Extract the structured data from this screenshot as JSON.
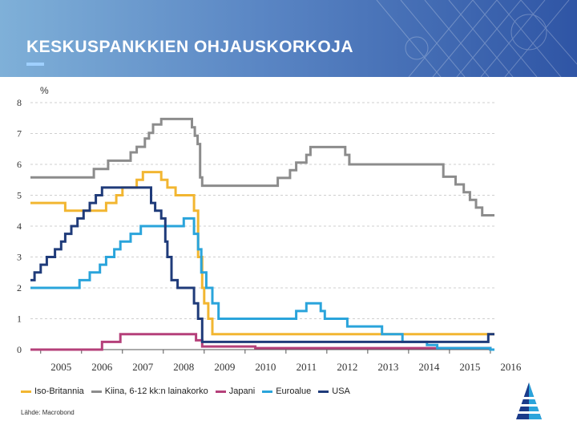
{
  "header": {
    "title": "KESKUSPANKKIEN OHJAUSKORKOJA"
  },
  "source": "Lähde: Macrobond",
  "colors": {
    "header_start": "#7fb0d8",
    "header_end": "#2f55a5"
  },
  "chart_data": {
    "type": "line",
    "ylabel": "%",
    "ylim": [
      0,
      8
    ],
    "xlim": [
      2004.75,
      2016.1
    ],
    "yticks": [
      "0",
      "1",
      "2",
      "3",
      "4",
      "5",
      "6",
      "7",
      "8"
    ],
    "xticks": [
      "2005",
      "2006",
      "2007",
      "2008",
      "2009",
      "2010",
      "2011",
      "2012",
      "2013",
      "2014",
      "2015",
      "2016"
    ],
    "grid": "horizontal dashed",
    "legend_position": "bottom",
    "series": [
      {
        "name": "Iso-Britannia",
        "color": "#f2b631",
        "points": [
          [
            2004.75,
            4.75
          ],
          [
            2005.6,
            4.75
          ],
          [
            2005.6,
            4.5
          ],
          [
            2006.6,
            4.5
          ],
          [
            2006.6,
            4.75
          ],
          [
            2006.85,
            4.75
          ],
          [
            2006.85,
            5.0
          ],
          [
            2007.0,
            5.0
          ],
          [
            2007.0,
            5.25
          ],
          [
            2007.35,
            5.25
          ],
          [
            2007.35,
            5.5
          ],
          [
            2007.5,
            5.5
          ],
          [
            2007.5,
            5.75
          ],
          [
            2007.95,
            5.75
          ],
          [
            2007.95,
            5.5
          ],
          [
            2008.1,
            5.5
          ],
          [
            2008.1,
            5.25
          ],
          [
            2008.3,
            5.25
          ],
          [
            2008.3,
            5.0
          ],
          [
            2008.75,
            5.0
          ],
          [
            2008.75,
            4.5
          ],
          [
            2008.85,
            4.5
          ],
          [
            2008.85,
            3.0
          ],
          [
            2008.95,
            3.0
          ],
          [
            2008.95,
            2.0
          ],
          [
            2009.0,
            2.0
          ],
          [
            2009.0,
            1.5
          ],
          [
            2009.1,
            1.5
          ],
          [
            2009.1,
            1.0
          ],
          [
            2009.2,
            1.0
          ],
          [
            2009.2,
            0.5
          ],
          [
            2016.1,
            0.5
          ]
        ]
      },
      {
        "name": "Kiina, 6-12 kk:n lainakorko",
        "color": "#8c8c8c",
        "points": [
          [
            2004.75,
            5.58
          ],
          [
            2006.3,
            5.58
          ],
          [
            2006.3,
            5.85
          ],
          [
            2006.65,
            5.85
          ],
          [
            2006.65,
            6.12
          ],
          [
            2007.2,
            6.12
          ],
          [
            2007.2,
            6.39
          ],
          [
            2007.35,
            6.39
          ],
          [
            2007.35,
            6.57
          ],
          [
            2007.55,
            6.57
          ],
          [
            2007.55,
            6.84
          ],
          [
            2007.65,
            6.84
          ],
          [
            2007.65,
            7.02
          ],
          [
            2007.75,
            7.02
          ],
          [
            2007.75,
            7.29
          ],
          [
            2007.95,
            7.29
          ],
          [
            2007.95,
            7.47
          ],
          [
            2008.7,
            7.47
          ],
          [
            2008.7,
            7.2
          ],
          [
            2008.77,
            7.2
          ],
          [
            2008.77,
            6.93
          ],
          [
            2008.84,
            6.93
          ],
          [
            2008.84,
            6.66
          ],
          [
            2008.9,
            6.66
          ],
          [
            2008.9,
            5.58
          ],
          [
            2008.95,
            5.58
          ],
          [
            2008.95,
            5.31
          ],
          [
            2010.8,
            5.31
          ],
          [
            2010.8,
            5.56
          ],
          [
            2011.1,
            5.56
          ],
          [
            2011.1,
            5.81
          ],
          [
            2011.25,
            5.81
          ],
          [
            2011.25,
            6.06
          ],
          [
            2011.5,
            6.06
          ],
          [
            2011.5,
            6.31
          ],
          [
            2011.6,
            6.31
          ],
          [
            2011.6,
            6.56
          ],
          [
            2012.45,
            6.56
          ],
          [
            2012.45,
            6.31
          ],
          [
            2012.55,
            6.31
          ],
          [
            2012.55,
            6.0
          ],
          [
            2014.85,
            6.0
          ],
          [
            2014.85,
            5.6
          ],
          [
            2015.15,
            5.6
          ],
          [
            2015.15,
            5.35
          ],
          [
            2015.35,
            5.35
          ],
          [
            2015.35,
            5.1
          ],
          [
            2015.5,
            5.1
          ],
          [
            2015.5,
            4.85
          ],
          [
            2015.65,
            4.85
          ],
          [
            2015.65,
            4.6
          ],
          [
            2015.8,
            4.6
          ],
          [
            2015.8,
            4.35
          ],
          [
            2016.1,
            4.35
          ]
        ]
      },
      {
        "name": "Japani",
        "color": "#b5407a",
        "points": [
          [
            2004.75,
            0.0
          ],
          [
            2006.5,
            0.0
          ],
          [
            2006.5,
            0.25
          ],
          [
            2006.95,
            0.25
          ],
          [
            2006.95,
            0.5
          ],
          [
            2008.8,
            0.5
          ],
          [
            2008.8,
            0.3
          ],
          [
            2008.95,
            0.3
          ],
          [
            2008.95,
            0.1
          ],
          [
            2010.25,
            0.1
          ],
          [
            2010.25,
            0.05
          ],
          [
            2016.0,
            0.05
          ],
          [
            2016.0,
            0.0
          ],
          [
            2016.1,
            0.0
          ]
        ]
      },
      {
        "name": "Euroalue",
        "color": "#2aa4db",
        "points": [
          [
            2004.75,
            2.0
          ],
          [
            2005.95,
            2.0
          ],
          [
            2005.95,
            2.25
          ],
          [
            2006.2,
            2.25
          ],
          [
            2006.2,
            2.5
          ],
          [
            2006.45,
            2.5
          ],
          [
            2006.45,
            2.75
          ],
          [
            2006.6,
            2.75
          ],
          [
            2006.6,
            3.0
          ],
          [
            2006.8,
            3.0
          ],
          [
            2006.8,
            3.25
          ],
          [
            2006.95,
            3.25
          ],
          [
            2006.95,
            3.5
          ],
          [
            2007.2,
            3.5
          ],
          [
            2007.2,
            3.75
          ],
          [
            2007.45,
            3.75
          ],
          [
            2007.45,
            4.0
          ],
          [
            2008.5,
            4.0
          ],
          [
            2008.5,
            4.25
          ],
          [
            2008.75,
            4.25
          ],
          [
            2008.75,
            3.75
          ],
          [
            2008.85,
            3.75
          ],
          [
            2008.85,
            3.25
          ],
          [
            2008.93,
            3.25
          ],
          [
            2008.93,
            2.5
          ],
          [
            2009.05,
            2.5
          ],
          [
            2009.05,
            2.0
          ],
          [
            2009.2,
            2.0
          ],
          [
            2009.2,
            1.5
          ],
          [
            2009.35,
            1.5
          ],
          [
            2009.35,
            1.0
          ],
          [
            2011.25,
            1.0
          ],
          [
            2011.25,
            1.25
          ],
          [
            2011.5,
            1.25
          ],
          [
            2011.5,
            1.5
          ],
          [
            2011.85,
            1.5
          ],
          [
            2011.85,
            1.25
          ],
          [
            2011.95,
            1.25
          ],
          [
            2011.95,
            1.0
          ],
          [
            2012.5,
            1.0
          ],
          [
            2012.5,
            0.75
          ],
          [
            2013.35,
            0.75
          ],
          [
            2013.35,
            0.5
          ],
          [
            2013.85,
            0.5
          ],
          [
            2013.85,
            0.25
          ],
          [
            2014.45,
            0.25
          ],
          [
            2014.45,
            0.15
          ],
          [
            2014.7,
            0.15
          ],
          [
            2014.7,
            0.05
          ],
          [
            2016.0,
            0.05
          ],
          [
            2016.0,
            0.0
          ],
          [
            2016.1,
            0.0
          ]
        ]
      },
      {
        "name": "USA",
        "color": "#1f3b7a",
        "points": [
          [
            2004.75,
            2.25
          ],
          [
            2004.85,
            2.25
          ],
          [
            2004.85,
            2.5
          ],
          [
            2005.0,
            2.5
          ],
          [
            2005.0,
            2.75
          ],
          [
            2005.15,
            2.75
          ],
          [
            2005.15,
            3.0
          ],
          [
            2005.35,
            3.0
          ],
          [
            2005.35,
            3.25
          ],
          [
            2005.5,
            3.25
          ],
          [
            2005.5,
            3.5
          ],
          [
            2005.6,
            3.5
          ],
          [
            2005.6,
            3.75
          ],
          [
            2005.75,
            3.75
          ],
          [
            2005.75,
            4.0
          ],
          [
            2005.9,
            4.0
          ],
          [
            2005.9,
            4.25
          ],
          [
            2006.05,
            4.25
          ],
          [
            2006.05,
            4.5
          ],
          [
            2006.2,
            4.5
          ],
          [
            2006.2,
            4.75
          ],
          [
            2006.35,
            4.75
          ],
          [
            2006.35,
            5.0
          ],
          [
            2006.5,
            5.0
          ],
          [
            2006.5,
            5.25
          ],
          [
            2007.7,
            5.25
          ],
          [
            2007.7,
            4.75
          ],
          [
            2007.8,
            4.75
          ],
          [
            2007.8,
            4.5
          ],
          [
            2007.95,
            4.5
          ],
          [
            2007.95,
            4.25
          ],
          [
            2008.05,
            4.25
          ],
          [
            2008.05,
            3.5
          ],
          [
            2008.1,
            3.5
          ],
          [
            2008.1,
            3.0
          ],
          [
            2008.2,
            3.0
          ],
          [
            2008.2,
            2.25
          ],
          [
            2008.35,
            2.25
          ],
          [
            2008.35,
            2.0
          ],
          [
            2008.75,
            2.0
          ],
          [
            2008.75,
            1.5
          ],
          [
            2008.85,
            1.5
          ],
          [
            2008.85,
            1.0
          ],
          [
            2008.95,
            1.0
          ],
          [
            2008.95,
            0.25
          ],
          [
            2015.95,
            0.25
          ],
          [
            2015.95,
            0.5
          ],
          [
            2016.1,
            0.5
          ]
        ]
      }
    ]
  }
}
